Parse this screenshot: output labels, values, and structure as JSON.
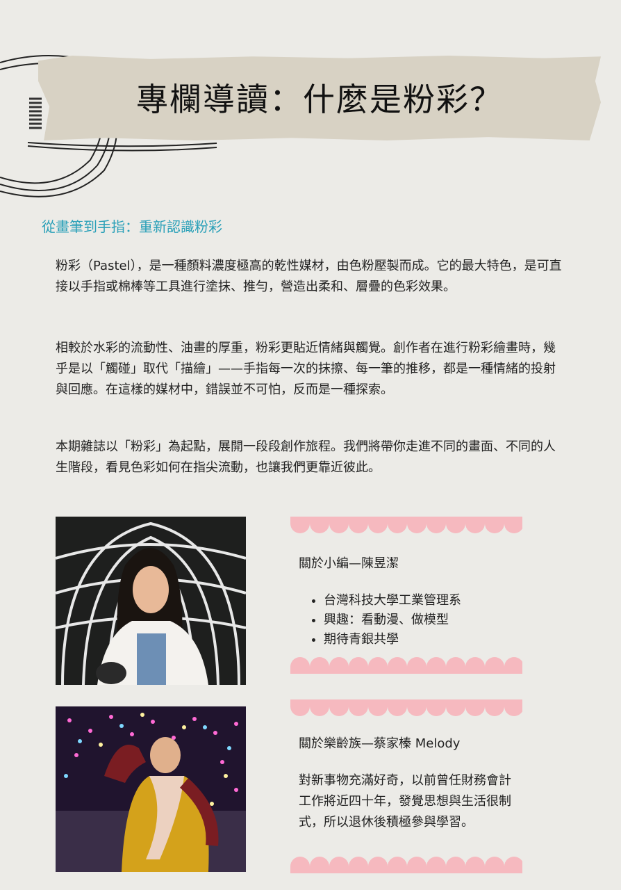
{
  "header": {
    "title": "專欄導讀：什麼是粉彩？"
  },
  "section": {
    "subheading": "從畫筆到手指：重新認識粉彩"
  },
  "body": {
    "paragraphs": [
      "粉彩（Pastel），是一種顏料濃度極高的乾性媒材，由色粉壓製而成。它的最大特色，是可直接以手指或棉棒等工具進行塗抹、推勻，營造出柔和、層疊的色彩效果。",
      "相較於水彩的流動性、油畫的厚重，粉彩更貼近情緒與觸覺。創作者在進行粉彩繪畫時，幾乎是以「觸碰」取代「描繪」——手指每一次的抹擦、每一筆的推移，都是一種情緒的投射與回應。在這樣的媒材中，錯誤並不可怕，反而是一種探索。",
      "本期雜誌以「粉彩」為起點，展開一段段創作旅程。我們將帶你走進不同的畫面、不同的人生階段，看見色彩如何在指尖流動，也讓我們更靠近彼此。"
    ]
  },
  "profiles": [
    {
      "title": "關於小編—陳昱潔",
      "items": [
        "台灣科技大學工業管理系",
        "興趣：看動漫、做模型",
        "期待青銀共學"
      ]
    },
    {
      "title": "關於樂齡族—蔡家榛  Melody",
      "description": "對新事物充滿好奇，以前曾任財務會計工作將近四十年，發覺思想與生活很制式，所以退休後積極參與學習。"
    }
  ],
  "colors": {
    "accent": "#2aa0b8",
    "scallop": "#f6b9bf",
    "background": "#ecebe7",
    "tape": "#d8d2c4"
  },
  "icons": [
    "stamp-lines-decoration",
    "scallop-border"
  ]
}
